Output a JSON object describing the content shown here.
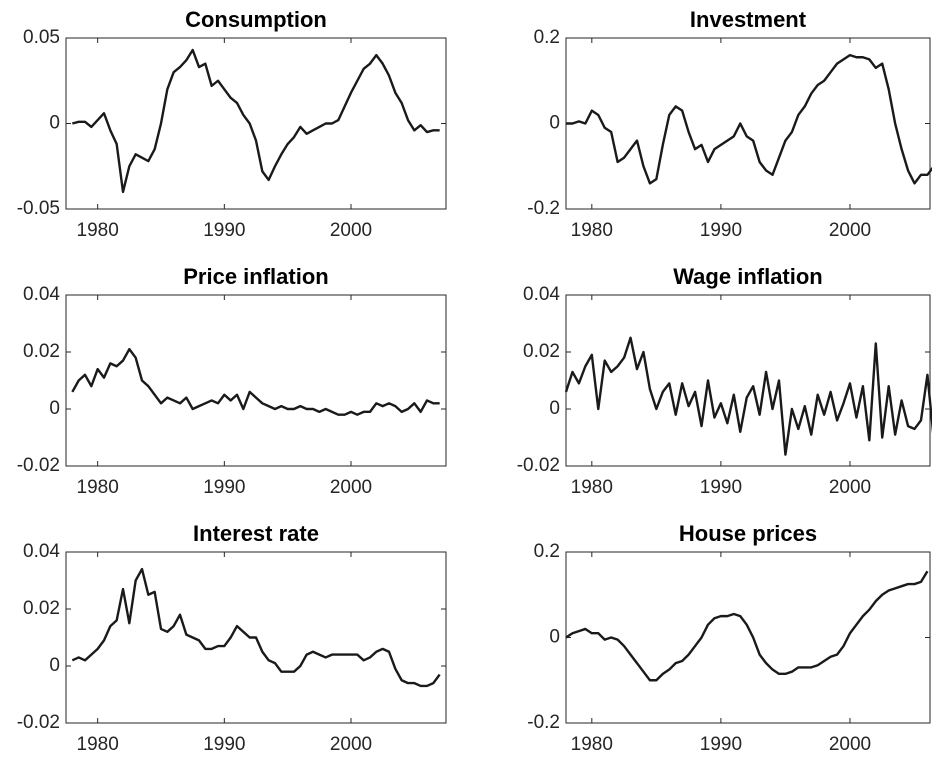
{
  "chart_data": [
    {
      "type": "line",
      "title": "Consumption",
      "color": "#1a1a1a",
      "x": [
        1978,
        1978.5,
        1979,
        1979.5,
        1980,
        1980.5,
        1981,
        1981.5,
        1982,
        1982.5,
        1983,
        1983.5,
        1984,
        1984.5,
        1985,
        1985.5,
        1986,
        1986.5,
        1987,
        1987.5,
        1988,
        1988.5,
        1989,
        1989.5,
        1990,
        1990.5,
        1991,
        1991.5,
        1992,
        1992.5,
        1993,
        1993.5,
        1994,
        1994.5,
        1995,
        1995.5,
        1996,
        1996.5,
        1997,
        1997.5,
        1998,
        1998.5,
        1999,
        1999.5,
        2000,
        2000.5,
        2001,
        2001.5,
        2002,
        2002.5,
        2003,
        2003.5,
        2004,
        2004.5,
        2005,
        2005.5,
        2006,
        2006.5,
        2007
      ],
      "values": [
        0,
        0.001,
        0.001,
        -0.002,
        0.002,
        0.006,
        -0.004,
        -0.012,
        -0.04,
        -0.025,
        -0.018,
        -0.02,
        -0.022,
        -0.015,
        0,
        0.02,
        0.03,
        0.033,
        0.037,
        0.043,
        0.033,
        0.035,
        0.022,
        0.025,
        0.02,
        0.015,
        0.012,
        0.005,
        0,
        -0.01,
        -0.028,
        -0.033,
        -0.025,
        -0.018,
        -0.012,
        -0.008,
        -0.002,
        -0.006,
        -0.004,
        -0.002,
        0,
        0,
        0.002,
        0.01,
        0.018,
        0.025,
        0.032,
        0.035,
        0.04,
        0.035,
        0.028,
        0.018,
        0.012,
        0.002,
        -0.004,
        -0.001,
        -0.005,
        -0.004,
        -0.004
      ],
      "xlim": [
        1977.5,
        2007.5
      ],
      "xticks": [
        1980,
        1990,
        2000
      ],
      "ylim": [
        -0.05,
        0.05
      ],
      "yticks": [
        -0.05,
        0,
        0.05
      ]
    },
    {
      "type": "line",
      "title": "Investment",
      "color": "#1a1a1a",
      "x": [
        1978,
        1978.5,
        1979,
        1979.5,
        1980,
        1980.5,
        1981,
        1981.5,
        1982,
        1982.5,
        1983,
        1983.5,
        1984,
        1984.5,
        1985,
        1985.5,
        1986,
        1986.5,
        1987,
        1987.5,
        1988,
        1988.5,
        1989,
        1989.5,
        1990,
        1990.5,
        1991,
        1991.5,
        1992,
        1992.5,
        1993,
        1993.5,
        1994,
        1994.5,
        1995,
        1995.5,
        1996,
        1996.5,
        1997,
        1997.5,
        1998,
        1998.5,
        1999,
        1999.5,
        2000,
        2000.5,
        2001,
        2001.5,
        2002,
        2002.5,
        2003,
        2003.5,
        2004,
        2004.5,
        2005,
        2005.5,
        2006,
        2006.5,
        2007
      ],
      "values": [
        0,
        0,
        0.005,
        0,
        0.03,
        0.02,
        -0.01,
        -0.02,
        -0.09,
        -0.08,
        -0.06,
        -0.04,
        -0.1,
        -0.14,
        -0.13,
        -0.05,
        0.02,
        0.04,
        0.03,
        -0.02,
        -0.06,
        -0.05,
        -0.09,
        -0.06,
        -0.05,
        -0.04,
        -0.03,
        0,
        -0.03,
        -0.04,
        -0.09,
        -0.11,
        -0.12,
        -0.08,
        -0.04,
        -0.02,
        0.02,
        0.04,
        0.07,
        0.09,
        0.1,
        0.12,
        0.14,
        0.15,
        0.16,
        0.155,
        0.155,
        0.15,
        0.13,
        0.14,
        0.08,
        0,
        -0.06,
        -0.11,
        -0.14,
        -0.12,
        -0.12,
        -0.1,
        -0.07
      ],
      "xlim": [
        1978,
        2006.2
      ],
      "xticks": [
        1980,
        1990,
        2000
      ],
      "ylim": [
        -0.2,
        0.2
      ],
      "yticks": [
        -0.2,
        0,
        0.2
      ]
    },
    {
      "type": "line",
      "title": "Price inflation",
      "color": "#1a1a1a",
      "x": [
        1978,
        1978.5,
        1979,
        1979.5,
        1980,
        1980.5,
        1981,
        1981.5,
        1982,
        1982.5,
        1983,
        1983.5,
        1984,
        1984.5,
        1985,
        1985.5,
        1986,
        1986.5,
        1987,
        1987.5,
        1988,
        1988.5,
        1989,
        1989.5,
        1990,
        1990.5,
        1991,
        1991.5,
        1992,
        1992.5,
        1993,
        1993.5,
        1994,
        1994.5,
        1995,
        1995.5,
        1996,
        1996.5,
        1997,
        1997.5,
        1998,
        1998.5,
        1999,
        1999.5,
        2000,
        2000.5,
        2001,
        2001.5,
        2002,
        2002.5,
        2003,
        2003.5,
        2004,
        2004.5,
        2005,
        2005.5,
        2006,
        2006.5,
        2007
      ],
      "values": [
        0.006,
        0.01,
        0.012,
        0.008,
        0.014,
        0.011,
        0.016,
        0.015,
        0.017,
        0.021,
        0.018,
        0.01,
        0.008,
        0.005,
        0.002,
        0.004,
        0.003,
        0.002,
        0.004,
        0,
        0.001,
        0.002,
        0.003,
        0.002,
        0.005,
        0.003,
        0.005,
        0,
        0.006,
        0.004,
        0.002,
        0.001,
        0,
        0.001,
        0,
        0,
        0.001,
        0,
        0,
        -0.001,
        0,
        -0.001,
        -0.002,
        -0.002,
        -0.001,
        -0.002,
        -0.001,
        -0.001,
        0.002,
        0.001,
        0.002,
        0.001,
        -0.001,
        0,
        0.002,
        -0.001,
        0.003,
        0.002,
        0.002
      ],
      "xlim": [
        1977.5,
        2007.5
      ],
      "xticks": [
        1980,
        1990,
        2000
      ],
      "ylim": [
        -0.02,
        0.04
      ],
      "yticks": [
        -0.02,
        0,
        0.02,
        0.04
      ]
    },
    {
      "type": "line",
      "title": "Wage inflation",
      "color": "#1a1a1a",
      "x": [
        1978,
        1978.5,
        1979,
        1979.5,
        1980,
        1980.5,
        1981,
        1981.5,
        1982,
        1982.5,
        1983,
        1983.5,
        1984,
        1984.5,
        1985,
        1985.5,
        1986,
        1986.5,
        1987,
        1987.5,
        1988,
        1988.5,
        1989,
        1989.5,
        1990,
        1990.5,
        1991,
        1991.5,
        1992,
        1992.5,
        1993,
        1993.5,
        1994,
        1994.5,
        1995,
        1995.5,
        1996,
        1996.5,
        1997,
        1997.5,
        1998,
        1998.5,
        1999,
        1999.5,
        2000,
        2000.5,
        2001,
        2001.5,
        2002,
        2002.5,
        2003,
        2003.5,
        2004,
        2004.5,
        2005,
        2005.5,
        2006,
        2006.5,
        2007
      ],
      "values": [
        0.006,
        0.013,
        0.009,
        0.015,
        0.019,
        0,
        0.017,
        0.013,
        0.015,
        0.018,
        0.025,
        0.014,
        0.02,
        0.007,
        0,
        0.006,
        0.009,
        -0.002,
        0.009,
        0.001,
        0.006,
        -0.006,
        0.01,
        -0.003,
        0.002,
        -0.005,
        0.005,
        -0.008,
        0.004,
        0.008,
        -0.002,
        0.013,
        0,
        0.01,
        -0.016,
        0,
        -0.007,
        0.001,
        -0.009,
        0.005,
        -0.002,
        0.006,
        -0.004,
        0.002,
        0.009,
        -0.003,
        0.008,
        -0.011,
        0.023,
        -0.01,
        0.008,
        -0.009,
        0.003,
        -0.006,
        -0.007,
        -0.004,
        0.012,
        -0.011,
        0.01
      ],
      "xlim": [
        1978,
        2006.2
      ],
      "xticks": [
        1980,
        1990,
        2000
      ],
      "ylim": [
        -0.02,
        0.04
      ],
      "yticks": [
        -0.02,
        0,
        0.02,
        0.04
      ]
    },
    {
      "type": "line",
      "title": "Interest rate",
      "color": "#1a1a1a",
      "x": [
        1978,
        1978.5,
        1979,
        1979.5,
        1980,
        1980.5,
        1981,
        1981.5,
        1982,
        1982.5,
        1983,
        1983.5,
        1984,
        1984.5,
        1985,
        1985.5,
        1986,
        1986.5,
        1987,
        1987.5,
        1988,
        1988.5,
        1989,
        1989.5,
        1990,
        1990.5,
        1991,
        1991.5,
        1992,
        1992.5,
        1993,
        1993.5,
        1994,
        1994.5,
        1995,
        1995.5,
        1996,
        1996.5,
        1997,
        1997.5,
        1998,
        1998.5,
        1999,
        1999.5,
        2000,
        2000.5,
        2001,
        2001.5,
        2002,
        2002.5,
        2003,
        2003.5,
        2004,
        2004.5,
        2005,
        2005.5,
        2006,
        2006.5,
        2007
      ],
      "values": [
        0.002,
        0.003,
        0.002,
        0.004,
        0.006,
        0.009,
        0.014,
        0.016,
        0.027,
        0.015,
        0.03,
        0.034,
        0.025,
        0.026,
        0.013,
        0.012,
        0.014,
        0.018,
        0.011,
        0.01,
        0.009,
        0.006,
        0.006,
        0.007,
        0.007,
        0.01,
        0.014,
        0.012,
        0.01,
        0.01,
        0.005,
        0.002,
        0.001,
        -0.002,
        -0.002,
        -0.002,
        0,
        0.004,
        0.005,
        0.004,
        0.003,
        0.004,
        0.004,
        0.004,
        0.004,
        0.004,
        0.002,
        0.003,
        0.005,
        0.006,
        0.005,
        -0.001,
        -0.005,
        -0.006,
        -0.006,
        -0.007,
        -0.007,
        -0.006,
        -0.003
      ],
      "xlim": [
        1977.5,
        2007.5
      ],
      "xticks": [
        1980,
        1990,
        2000
      ],
      "ylim": [
        -0.02,
        0.04
      ],
      "yticks": [
        -0.02,
        0,
        0.02,
        0.04
      ]
    },
    {
      "type": "line",
      "title": "House prices",
      "color": "#1a1a1a",
      "x": [
        1978,
        1978.5,
        1979,
        1979.5,
        1980,
        1980.5,
        1981,
        1981.5,
        1982,
        1982.5,
        1983,
        1983.5,
        1984,
        1984.5,
        1985,
        1985.5,
        1986,
        1986.5,
        1987,
        1987.5,
        1988,
        1988.5,
        1989,
        1989.5,
        1990,
        1990.5,
        1991,
        1991.5,
        1992,
        1992.5,
        1993,
        1993.5,
        1994,
        1994.5,
        1995,
        1995.5,
        1996,
        1996.5,
        1997,
        1997.5,
        1998,
        1998.5,
        1999,
        1999.5,
        2000,
        2000.5,
        2001,
        2001.5,
        2002,
        2002.5,
        2003,
        2003.5,
        2004,
        2004.5,
        2005,
        2005.5,
        2006
      ],
      "values": [
        0,
        0.01,
        0.015,
        0.02,
        0.01,
        0.01,
        -0.005,
        0,
        -0.005,
        -0.02,
        -0.04,
        -0.06,
        -0.08,
        -0.1,
        -0.1,
        -0.085,
        -0.075,
        -0.06,
        -0.055,
        -0.04,
        -0.02,
        0,
        0.03,
        0.045,
        0.05,
        0.05,
        0.055,
        0.05,
        0.03,
        0,
        -0.04,
        -0.06,
        -0.075,
        -0.085,
        -0.085,
        -0.08,
        -0.07,
        -0.07,
        -0.07,
        -0.065,
        -0.055,
        -0.045,
        -0.04,
        -0.02,
        0.01,
        0.03,
        0.05,
        0.065,
        0.085,
        0.1,
        0.11,
        0.115,
        0.12,
        0.125,
        0.125,
        0.13,
        0.155
      ],
      "xlim": [
        1978,
        2006.2
      ],
      "xticks": [
        1980,
        1990,
        2000
      ],
      "ylim": [
        -0.2,
        0.2
      ],
      "yticks": [
        -0.2,
        0,
        0.2
      ]
    }
  ]
}
